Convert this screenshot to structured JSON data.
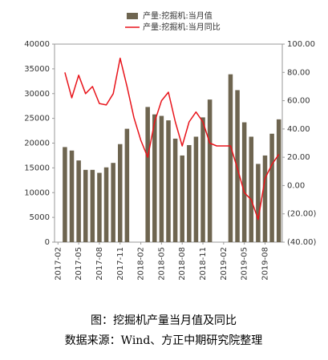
{
  "chart_data": {
    "type": "bar_line",
    "caption": "图：挖掘机产量当月值及同比",
    "source": "数据来源：Wind、方正中期研究院整理",
    "categories": [
      "2017-02",
      null,
      null,
      "2017-05",
      null,
      null,
      "2017-08",
      null,
      null,
      "2017-11",
      null,
      null,
      "2018-02",
      null,
      null,
      "2018-05",
      null,
      null,
      "2018-08",
      null,
      null,
      "2018-11",
      null,
      null,
      "2019-02",
      null,
      null,
      "2019-05",
      null,
      null,
      "2019-08",
      null,
      null
    ],
    "series": [
      {
        "name": "产量:挖掘机:当月值",
        "type": "bar",
        "color": "#6e6550",
        "values": [
          null,
          19200,
          18500,
          16500,
          14600,
          14600,
          14000,
          15100,
          16000,
          19800,
          22900,
          null,
          null,
          27300,
          25800,
          25500,
          24600,
          20900,
          17500,
          19600,
          21300,
          25200,
          28800,
          null,
          null,
          33900,
          30700,
          24200,
          21300,
          15800,
          17500,
          21900,
          24800
        ]
      },
      {
        "name": "产量:挖掘机:当月同比",
        "type": "line",
        "axis": "y2",
        "color": "#e8141b",
        "values": [
          null,
          80,
          62,
          78,
          65,
          70,
          58,
          57,
          65,
          90,
          70,
          48,
          32,
          20,
          45,
          60,
          66,
          45,
          28,
          45,
          52,
          45,
          30,
          28,
          28,
          28,
          12,
          -5,
          -10,
          -24,
          5,
          15,
          22
        ]
      }
    ],
    "ylim": [
      0,
      40000
    ],
    "yticks": [
      0,
      5000,
      10000,
      15000,
      20000,
      25000,
      30000,
      35000,
      40000
    ],
    "y2lim": [
      -40,
      100
    ],
    "y2ticks": [
      {
        "value": -40,
        "label": "(40.00)"
      },
      {
        "value": -20,
        "label": "(20.00)"
      },
      {
        "value": 0,
        "label": "0.00"
      },
      {
        "value": 20,
        "label": "20.00"
      },
      {
        "value": 40,
        "label": "40.00"
      },
      {
        "value": 60,
        "label": "60.00"
      },
      {
        "value": 80,
        "label": "80.00"
      },
      {
        "value": 100,
        "label": "100.00"
      }
    ],
    "legend": "top"
  }
}
